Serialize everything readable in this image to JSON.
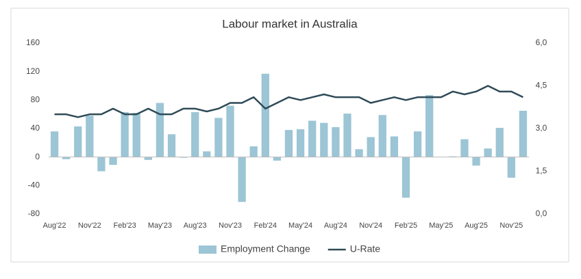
{
  "chart_data": {
    "type": "bar-line",
    "title": "Labour market in Australia",
    "categories": [
      "Aug'22",
      null,
      null,
      "Nov'22",
      null,
      null,
      "Feb'23",
      null,
      null,
      "May'23",
      null,
      null,
      "Aug'23",
      null,
      null,
      "Nov'23",
      null,
      null,
      "Feb'24",
      null,
      null,
      "May'24",
      null,
      null,
      "Aug'24",
      null,
      null,
      "Nov'24",
      null,
      null,
      "Feb'25",
      null,
      null,
      "May'25",
      null,
      null,
      "Aug'25",
      null,
      null,
      "Nov'25",
      null
    ],
    "series": [
      {
        "name": "Employment Change",
        "type": "bar",
        "color": "#9cc5d5",
        "axis": "y",
        "values": [
          36,
          -3,
          43,
          58,
          -20,
          -11,
          63,
          62,
          -4,
          76,
          32,
          -1,
          63,
          8,
          55,
          72,
          -63,
          15,
          117,
          -5,
          38,
          39,
          51,
          48,
          42,
          61,
          11,
          28,
          59,
          29,
          -57,
          36,
          87,
          0,
          1,
          25,
          -12,
          12,
          41,
          -29,
          65
        ]
      },
      {
        "name": "U-Rate",
        "type": "line",
        "color": "#2e4a57",
        "axis": "y2",
        "values": [
          3.5,
          3.5,
          3.4,
          3.5,
          3.5,
          3.7,
          3.5,
          3.5,
          3.7,
          3.5,
          3.5,
          3.7,
          3.7,
          3.6,
          3.7,
          3.9,
          3.9,
          4.1,
          3.7,
          3.9,
          4.1,
          4.0,
          4.1,
          4.2,
          4.1,
          4.1,
          4.1,
          3.9,
          4.0,
          4.1,
          4.0,
          4.1,
          4.1,
          4.1,
          4.3,
          4.2,
          4.3,
          4.5,
          4.3,
          4.3,
          4.1
        ]
      }
    ],
    "ylim": [
      -80,
      160
    ],
    "yticks": [
      -80,
      -40,
      0,
      40,
      80,
      120,
      160
    ],
    "y2lim": [
      0,
      6
    ],
    "y2ticks": [
      {
        "value": 0,
        "label": "0,0"
      },
      {
        "value": 1.5,
        "label": "1,5"
      },
      {
        "value": 3,
        "label": "3,0"
      },
      {
        "value": 4.5,
        "label": "4,5"
      },
      {
        "value": 6,
        "label": "6,0"
      }
    ],
    "legend": "bottom"
  }
}
